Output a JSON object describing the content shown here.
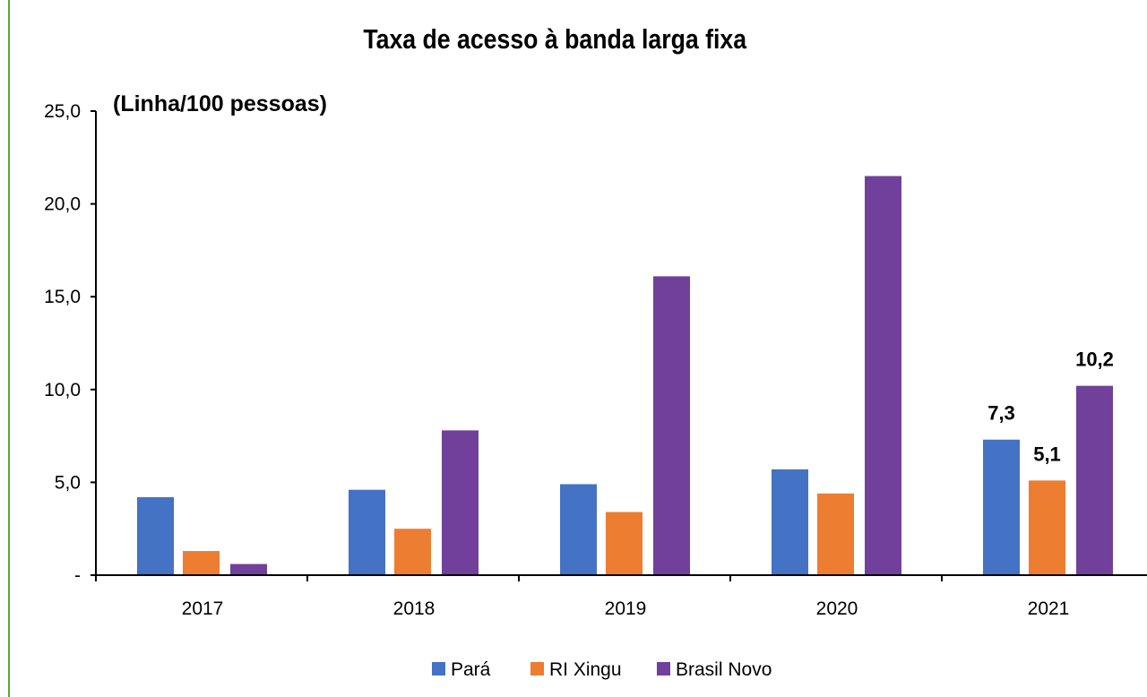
{
  "chart_data": {
    "type": "bar",
    "title": "Taxa de acesso à banda larga fixa",
    "unit_label": "(Linha/100 pessoas)",
    "categories": [
      "2017",
      "2018",
      "2019",
      "2020",
      "2021"
    ],
    "series": [
      {
        "name": "Pará",
        "color": "#4472c4",
        "values": [
          4.2,
          4.6,
          4.9,
          5.7,
          7.3
        ]
      },
      {
        "name": "RI Xingu",
        "color": "#ed7d31",
        "values": [
          1.3,
          2.5,
          3.4,
          4.4,
          5.1
        ]
      },
      {
        "name": "Brasil Novo",
        "color": "#70409a",
        "values": [
          0.6,
          7.8,
          16.1,
          21.5,
          10.2
        ]
      }
    ],
    "ylim": [
      0,
      25
    ],
    "yticks": [
      0,
      5,
      10,
      15,
      20,
      25
    ],
    "ytick_labels": [
      "-",
      "5,0",
      "10,0",
      "15,0",
      "20,0",
      "25,0"
    ],
    "data_labels": [
      {
        "series": 0,
        "category": 4,
        "text": "7,3"
      },
      {
        "series": 1,
        "category": 4,
        "text": "5,1"
      },
      {
        "series": 2,
        "category": 4,
        "text": "10,2"
      }
    ],
    "legend_position": "bottom",
    "grid": false
  }
}
